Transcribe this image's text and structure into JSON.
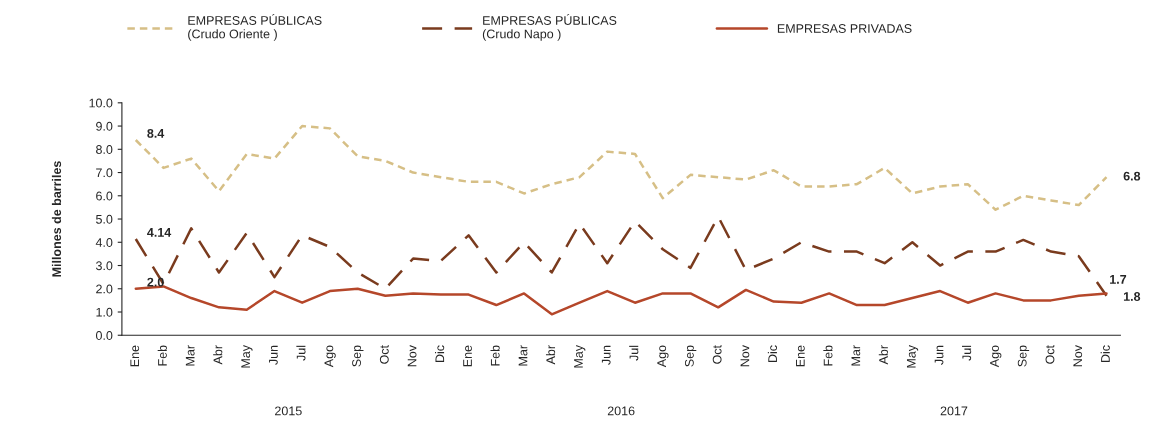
{
  "chart_data": {
    "type": "line",
    "ylabel": "Millones de barriles",
    "categories": [
      "Ene",
      "Feb",
      "Mar",
      "Abr",
      "May",
      "Jun",
      "Jul",
      "Ago",
      "Sep",
      "Oct",
      "Nov",
      "Dic",
      "Ene",
      "Feb",
      "Mar",
      "Abr",
      "May",
      "Jun",
      "Jul",
      "Ago",
      "Sep",
      "Oct",
      "Nov",
      "Dic",
      "Ene",
      "Feb",
      "Mar",
      "Abr",
      "May",
      "Jun",
      "Jul",
      "Ago",
      "Sep",
      "Oct",
      "Nov",
      "Dic"
    ],
    "series": [
      {
        "name": "EMPRESAS PÚBLICAS\n(Crudo Oriente )",
        "color": "#d6bf86",
        "line_style": "dotted",
        "values": [
          8.4,
          7.2,
          7.6,
          6.2,
          7.8,
          7.6,
          9.0,
          8.9,
          7.7,
          7.5,
          7.0,
          6.8,
          6.6,
          6.6,
          6.1,
          6.5,
          6.8,
          7.9,
          7.8,
          5.9,
          6.9,
          6.8,
          6.7,
          7.1,
          6.4,
          6.4,
          6.5,
          7.2,
          6.1,
          6.4,
          6.5,
          5.4,
          6.0,
          5.8,
          5.6,
          6.8
        ],
        "value_labels": [
          "8.4",
          null,
          null,
          null,
          null,
          null,
          null,
          null,
          null,
          null,
          null,
          null,
          null,
          null,
          null,
          null,
          null,
          null,
          null,
          null,
          null,
          null,
          null,
          null,
          null,
          null,
          null,
          null,
          null,
          null,
          null,
          null,
          null,
          null,
          null,
          "6.8"
        ]
      },
      {
        "name": "EMPRESAS PÚBLICAS\n(Crudo Napo )",
        "color": "#7a3b1e",
        "line_style": "dashed",
        "values": [
          4.14,
          2.2,
          4.6,
          2.7,
          4.4,
          2.5,
          4.3,
          3.8,
          2.7,
          2.0,
          3.3,
          3.2,
          4.3,
          2.7,
          4.0,
          2.7,
          4.8,
          3.1,
          4.9,
          3.7,
          2.9,
          5.1,
          2.8,
          3.3,
          4.0,
          3.6,
          3.6,
          3.1,
          4.0,
          3.0,
          3.6,
          3.6,
          4.1,
          3.6,
          3.4,
          1.7
        ],
        "value_labels": [
          "4.14",
          null,
          null,
          null,
          null,
          null,
          null,
          null,
          null,
          null,
          null,
          null,
          null,
          null,
          null,
          null,
          null,
          null,
          null,
          null,
          null,
          null,
          null,
          null,
          null,
          null,
          null,
          null,
          null,
          null,
          null,
          null,
          null,
          null,
          null,
          "1.7"
        ]
      },
      {
        "name": "EMPRESAS PRIVADAS",
        "color": "#b5472a",
        "line_style": "solid",
        "values": [
          2.0,
          2.1,
          1.6,
          1.2,
          1.1,
          1.9,
          1.4,
          1.9,
          2.0,
          1.7,
          1.8,
          1.75,
          1.75,
          1.3,
          1.8,
          0.9,
          1.4,
          1.9,
          1.4,
          1.8,
          1.8,
          1.2,
          1.95,
          1.45,
          1.4,
          1.8,
          1.3,
          1.3,
          1.6,
          1.9,
          1.4,
          1.8,
          1.5,
          1.5,
          1.7,
          1.8
        ],
        "value_labels": [
          "2.0",
          null,
          null,
          null,
          null,
          null,
          null,
          null,
          null,
          null,
          null,
          null,
          null,
          null,
          null,
          null,
          null,
          null,
          null,
          null,
          null,
          null,
          null,
          null,
          null,
          null,
          null,
          null,
          null,
          null,
          null,
          null,
          null,
          null,
          null,
          "1.8"
        ]
      }
    ],
    "annotations": [
      "2015",
      "2016",
      "2017"
    ],
    "ylim": [
      0.0,
      10.0
    ],
    "yticks": [
      {
        "value": 0,
        "label": "0.0"
      },
      {
        "value": 1,
        "label": "1.0"
      },
      {
        "value": 2,
        "label": "2.0"
      },
      {
        "value": 3,
        "label": "3.0"
      },
      {
        "value": 4,
        "label": "4.0"
      },
      {
        "value": 5,
        "label": "5.0"
      },
      {
        "value": 6,
        "label": "6.0"
      },
      {
        "value": 7,
        "label": "7.0"
      },
      {
        "value": 8,
        "label": "8.0"
      },
      {
        "value": 9,
        "label": "9.0"
      },
      {
        "value": 10,
        "label": "10.0"
      }
    ],
    "grid": false,
    "legend": "top",
    "marker": "none"
  }
}
